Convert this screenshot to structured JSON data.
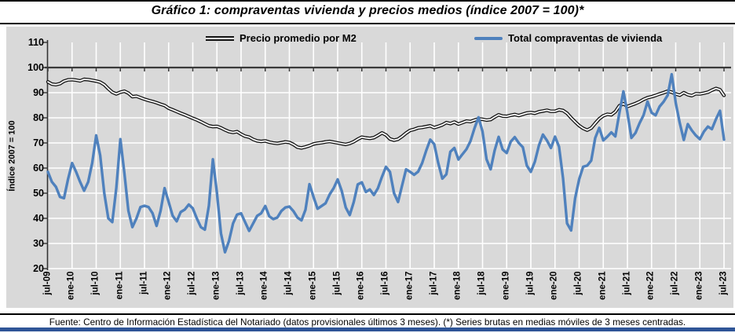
{
  "page": {
    "title": "Gráfico 1: compraventas vivienda y precios medios (índice 2007 = 100)*",
    "footer": "Fuente: Centro de Información Estadística del Notariado (datos provisionales últimos 3 meses). (*) Series brutas en medias móviles de 3 meses centradas.",
    "accent_bar_color": "#2F5597"
  },
  "chart_data": {
    "type": "line",
    "title": "Gráfico 1: compraventas vivienda y precios medios (índice 2007 = 100)*",
    "ylabel": "Índice 2007 = 100",
    "ylim": [
      20,
      110
    ],
    "y_tick_labels": [
      "110",
      "100",
      "90",
      "80",
      "70",
      "60",
      "50",
      "40",
      "30",
      "20"
    ],
    "x_tick_labels": [
      "jul-09",
      "ene-10",
      "jul-10",
      "ene-11",
      "jul-11",
      "ene-12",
      "jul-12",
      "ene-13",
      "jul-13",
      "ene-14",
      "jul-14",
      "ene-15",
      "jul-15",
      "ene-16",
      "jul-16",
      "ene-17",
      "jul-17",
      "ene-18",
      "jul-18",
      "ene-19",
      "jul-19",
      "ene-20",
      "jul-20",
      "ene-21",
      "jul-21",
      "ene-22",
      "jul-22",
      "ene-23",
      "jul-23"
    ],
    "x_frequency": "monthly",
    "x_tick_every_months": 6,
    "grid": true,
    "plot_bg": "#D9D9D9",
    "gridline_color": "#FFFFFF",
    "axis_color": "#3A3A3A",
    "axis_cross_y": 100,
    "legend_position": "top",
    "legend": [
      {
        "name": "Precio promedio por M2",
        "color": "#141414",
        "style": "double-line"
      },
      {
        "name": "Total compraventas de vivienda",
        "color": "#4F81BD",
        "style": "solid-line"
      }
    ],
    "series": [
      {
        "name": "Precio promedio por M2",
        "values": [
          94.3,
          93.4,
          93.2,
          93.6,
          94.6,
          95.1,
          95.2,
          95.0,
          94.7,
          95.3,
          95.2,
          94.9,
          94.6,
          94.2,
          93.2,
          91.6,
          90.2,
          89.5,
          90.2,
          90.6,
          89.8,
          88.4,
          88.6,
          88.0,
          87.4,
          86.9,
          86.5,
          86.0,
          85.4,
          84.9,
          83.8,
          83.2,
          82.5,
          81.8,
          81.2,
          80.5,
          79.8,
          79.2,
          78.4,
          77.6,
          76.8,
          76.5,
          76.6,
          76.0,
          75.2,
          74.5,
          74.2,
          74.5,
          73.5,
          72.7,
          72.3,
          71.4,
          70.8,
          70.6,
          70.8,
          70.3,
          70.0,
          69.8,
          70.1,
          70.4,
          70.2,
          69.4,
          68.3,
          68.0,
          68.4,
          68.9,
          69.6,
          69.9,
          70.1,
          70.4,
          70.6,
          70.3,
          70.0,
          69.7,
          69.4,
          69.8,
          70.5,
          71.5,
          72.3,
          72.0,
          71.8,
          72.1,
          73.0,
          74.0,
          73.2,
          71.6,
          71.1,
          71.5,
          72.6,
          73.9,
          75.0,
          75.4,
          76.0,
          76.2,
          76.5,
          76.8,
          76.1,
          76.6,
          77.2,
          78.1,
          77.7,
          78.3,
          77.5,
          78.1,
          78.7,
          78.5,
          79.1,
          79.6,
          79.4,
          79.1,
          79.3,
          80.3,
          81.2,
          80.7,
          80.6,
          81.0,
          81.3,
          80.9,
          81.4,
          81.9,
          82.1,
          81.8,
          82.4,
          82.7,
          83.0,
          82.6,
          82.6,
          83.2,
          82.9,
          81.8,
          80.0,
          78.4,
          76.9,
          75.8,
          75.1,
          75.9,
          77.8,
          79.6,
          80.8,
          81.4,
          81.2,
          82.4,
          84.8,
          85.6,
          84.5,
          85.1,
          85.7,
          86.4,
          87.3,
          88.0,
          88.4,
          88.9,
          89.5,
          90.0,
          90.6,
          90.2,
          89.5,
          89.0,
          90.0,
          89.2,
          88.8,
          89.6,
          89.5,
          89.8,
          90.2,
          91.0,
          91.7,
          91.2,
          88.9
        ]
      },
      {
        "name": "Total compraventas de vivienda",
        "values": [
          58.5,
          54.5,
          52.5,
          48.5,
          48.0,
          55.5,
          62.0,
          58.5,
          54.5,
          51.0,
          54.5,
          62.0,
          73.0,
          65.0,
          50.0,
          40.0,
          38.5,
          52.0,
          71.5,
          58.0,
          43.0,
          36.5,
          40.0,
          44.5,
          45.0,
          44.5,
          42.0,
          37.0,
          43.0,
          52.0,
          46.5,
          41.0,
          38.8,
          42.5,
          43.5,
          45.5,
          44.0,
          40.0,
          36.5,
          35.5,
          45.0,
          63.5,
          50.0,
          34.0,
          26.5,
          31.0,
          38.0,
          41.5,
          42.0,
          38.5,
          35.0,
          38.0,
          41.0,
          42.0,
          44.9,
          40.8,
          39.7,
          40.3,
          42.9,
          44.3,
          44.7,
          42.9,
          40.3,
          39.2,
          43.4,
          53.6,
          48.5,
          43.8,
          44.9,
          46.0,
          49.5,
          52.0,
          55.5,
          51.0,
          44.3,
          41.3,
          46.5,
          53.5,
          54.3,
          50.5,
          51.5,
          49.3,
          52.0,
          56.5,
          60.5,
          58.5,
          50.0,
          46.5,
          53.0,
          59.5,
          58.5,
          57.3,
          58.6,
          62.0,
          67.0,
          71.3,
          69.5,
          62.0,
          55.8,
          57.5,
          66.5,
          68.0,
          63.4,
          65.5,
          67.5,
          70.7,
          75.9,
          80.2,
          74.5,
          63.5,
          59.5,
          67.0,
          72.4,
          67.4,
          66.0,
          70.5,
          72.3,
          70.0,
          68.3,
          61.0,
          58.5,
          62.5,
          69.0,
          73.3,
          71.0,
          68.0,
          72.5,
          68.5,
          56.0,
          38.0,
          35.2,
          48.0,
          55.5,
          60.5,
          61.0,
          63.0,
          72.0,
          76.0,
          71.0,
          72.5,
          74.2,
          72.6,
          82.0,
          90.5,
          82.0,
          72.0,
          74.0,
          77.8,
          81.0,
          86.5,
          82.0,
          81.0,
          84.5,
          86.4,
          89.0,
          97.3,
          86.0,
          78.0,
          71.2,
          77.5,
          75.0,
          73.0,
          71.5,
          74.5,
          76.5,
          75.5,
          79.5,
          82.8,
          71.3
        ]
      }
    ]
  }
}
